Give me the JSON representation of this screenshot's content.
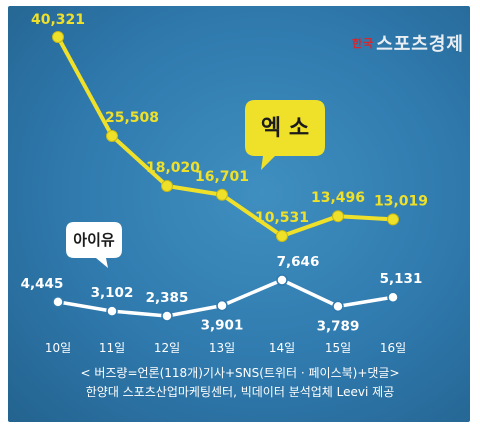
{
  "brand": {
    "prefix": "한국",
    "name": "스포츠경제"
  },
  "footnote_line1": "< 버즈량=언론(118개)기사+SNS(트위터 · 페이스북)+댓글>",
  "footnote_line2": "한양대 스포츠산업마케팅센터, 빅데이터 분석업체 Leevi 제공",
  "colors": {
    "exo": "#efe02a",
    "iu": "#ffffff",
    "bg": "#2f79ad"
  },
  "chart_data": {
    "type": "line",
    "categories": [
      "10일",
      "11일",
      "12일",
      "13일",
      "14일",
      "15일",
      "16일"
    ],
    "series": [
      {
        "name": "엑 소",
        "values": [
          40321,
          25508,
          18020,
          16701,
          10531,
          13496,
          13019
        ],
        "labels": [
          "40,321",
          "25,508",
          "18,020",
          "16,701",
          "10,531",
          "13,496",
          "13,019"
        ]
      },
      {
        "name": "아이유",
        "values": [
          4445,
          3102,
          2385,
          3901,
          7646,
          3789,
          5131
        ],
        "labels": [
          "4,445",
          "3,102",
          "2,385",
          "3,901",
          "7,646",
          "3,789",
          "5,131"
        ]
      }
    ]
  }
}
